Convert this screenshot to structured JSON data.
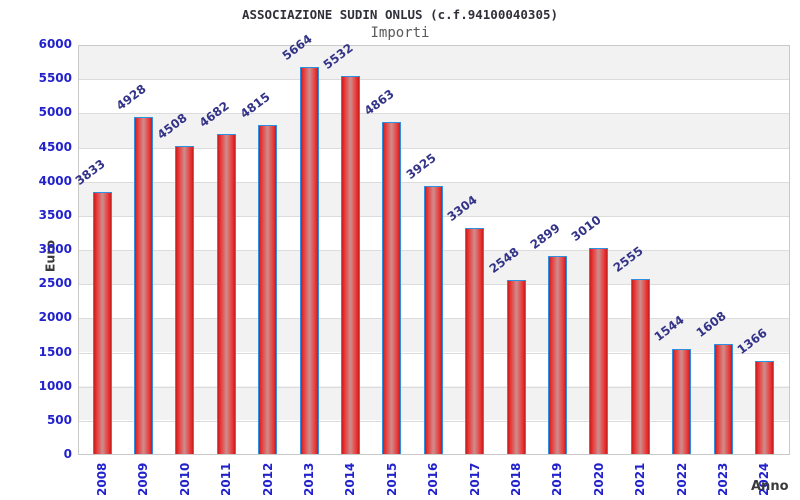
{
  "chart_data": {
    "type": "bar",
    "title": "ASSOCIAZIONE SUDIN ONLUS (c.f.94100040305)",
    "subtitle": "Importi",
    "ylabel": "Euro",
    "xlabel": "Anno",
    "categories": [
      "2008",
      "2009",
      "2010",
      "2011",
      "2012",
      "2013",
      "2014",
      "2015",
      "2016",
      "2017",
      "2018",
      "2019",
      "2020",
      "2021",
      "2022",
      "2023",
      "2024"
    ],
    "values": [
      3833,
      4928,
      4508,
      4682,
      4815,
      5664,
      5532,
      4863,
      3925,
      3304,
      2548,
      2899,
      3010,
      2555,
      1544,
      1608,
      1366
    ],
    "ylim": [
      0,
      6000
    ],
    "ytick_step": 500,
    "grid": true,
    "legend": "none",
    "colors": {
      "bar_fill_edge": "#c41d1d",
      "bar_fill_center": "#cf8d8d",
      "bar_border": "#2f8fe0",
      "tick_label": "#2222cc",
      "value_label": "#333388",
      "axis_title": "#3a3a3a",
      "title": "#30303a",
      "subtitle": "#5a5a5a",
      "band_light": "#f2f2f2",
      "band_white": "#ffffff"
    }
  }
}
